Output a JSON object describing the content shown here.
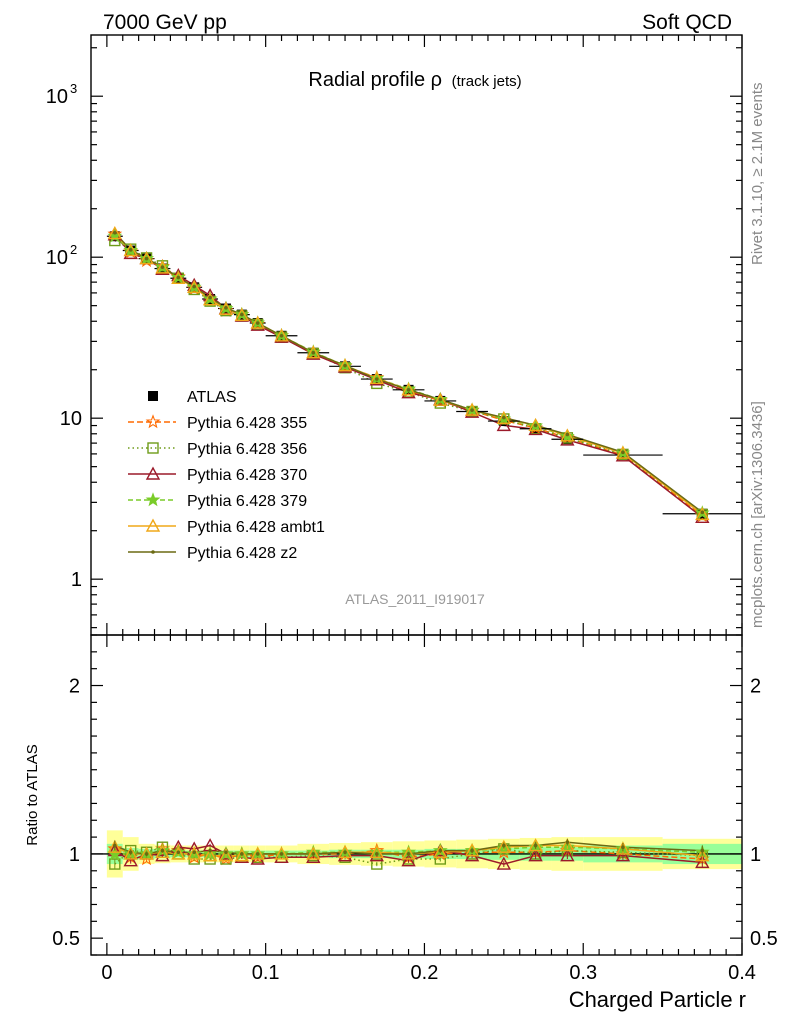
{
  "header": {
    "left": "7000 GeV pp",
    "right": "Soft QCD"
  },
  "side_labels": {
    "top": "Rivet 3.1.10, ≥ 2.1M events",
    "bottom": "mcplots.cern.ch [arXiv:1306.3436]"
  },
  "chart_data": [
    {
      "type": "line",
      "title_main": "Radial profile ρ",
      "title_sub": "(track jets)",
      "watermark": "ATLAS_2011_I919017",
      "yscale": "log",
      "xlim": [
        -0.01,
        0.4
      ],
      "ylim": [
        0.45,
        2400
      ],
      "y_ticks": [
        {
          "value": 1,
          "label": "1"
        },
        {
          "value": 10,
          "label": "10"
        },
        {
          "value": 100,
          "label": "10",
          "exp": "2"
        },
        {
          "value": 1000,
          "label": "10",
          "exp": "3"
        }
      ],
      "x": [
        0.005,
        0.015,
        0.025,
        0.035,
        0.045,
        0.055,
        0.065,
        0.075,
        0.085,
        0.095,
        0.11,
        0.13,
        0.15,
        0.17,
        0.19,
        0.21,
        0.23,
        0.25,
        0.27,
        0.29,
        0.325,
        0.375
      ],
      "x_half_widths": [
        0.005,
        0.005,
        0.005,
        0.005,
        0.005,
        0.005,
        0.005,
        0.005,
        0.005,
        0.005,
        0.01,
        0.01,
        0.01,
        0.01,
        0.01,
        0.01,
        0.01,
        0.01,
        0.01,
        0.01,
        0.025,
        0.025
      ],
      "data": {
        "name": "ATLAS",
        "values": [
          135,
          110,
          98,
          85,
          74,
          65,
          55,
          48,
          44,
          39,
          32.5,
          25.5,
          21,
          17.5,
          15,
          12.8,
          11,
          9.6,
          8.6,
          7.4,
          5.9,
          2.55
        ]
      },
      "series": [
        {
          "name": "Pythia 6.428 355",
          "color": "#ff6a00",
          "dash": "6,3",
          "marker": "star-open",
          "ratio": [
            1.03,
            0.98,
            0.97,
            1.03,
            1.02,
            0.98,
            1.0,
            0.97,
            1.0,
            0.98,
            1.0,
            1.0,
            1.0,
            1.02,
            0.98,
            1.0,
            1.01,
            1.01,
            1.01,
            1.02,
            1.0,
            0.97
          ]
        },
        {
          "name": "Pythia 6.428 356",
          "color": "#6f9c1a",
          "dash": "1.5,3",
          "marker": "square-open",
          "ratio": [
            0.94,
            1.02,
            1.01,
            1.04,
            1.0,
            0.97,
            0.97,
            0.97,
            0.98,
            0.98,
            0.98,
            0.99,
            0.98,
            0.94,
            0.97,
            0.97,
            1.0,
            1.03,
            1.0,
            1.02,
            1.01,
            0.99
          ]
        },
        {
          "name": "Pythia 6.428 370",
          "color": "#9b1a2a",
          "dash": "",
          "marker": "triangle-open",
          "ratio": [
            1.02,
            0.96,
            1.0,
            0.99,
            1.04,
            1.03,
            1.05,
            1.0,
            0.98,
            0.97,
            0.98,
            0.98,
            0.99,
            0.99,
            0.96,
            1.02,
            0.99,
            0.94,
            0.99,
            0.99,
            0.99,
            0.95
          ]
        },
        {
          "name": "Pythia 6.428 379",
          "color": "#7acc29",
          "dash": "5,3",
          "marker": "star-filled",
          "ratio": [
            1.0,
            1.0,
            1.0,
            1.02,
            1.01,
            1.0,
            1.0,
            1.0,
            1.0,
            1.0,
            1.0,
            1.01,
            1.01,
            1.01,
            1.01,
            1.02,
            1.02,
            1.03,
            1.04,
            1.04,
            1.03,
            1.01
          ]
        },
        {
          "name": "Pythia 6.428 ambt1",
          "color": "#f0a818",
          "dash": "",
          "marker": "triangle-open",
          "ratio": [
            1.04,
            1.0,
            1.0,
            1.01,
            1.0,
            1.0,
            0.99,
            0.99,
            0.99,
            1.0,
            1.0,
            1.0,
            1.01,
            1.01,
            1.0,
            1.01,
            1.02,
            1.04,
            1.05,
            1.05,
            1.03,
            0.99
          ]
        },
        {
          "name": "Pythia 6.428 z2",
          "color": "#6b6a13",
          "dash": "",
          "marker": "dot",
          "ratio": [
            1.05,
            1.01,
            1.0,
            1.02,
            1.01,
            1.01,
            1.02,
            1.01,
            1.0,
            1.0,
            1.0,
            1.0,
            1.01,
            1.0,
            1.0,
            1.02,
            1.02,
            1.05,
            1.05,
            1.07,
            1.04,
            1.02
          ]
        }
      ]
    },
    {
      "type": "line",
      "ylabel": "Ratio to ATLAS",
      "xlabel": "Charged Particle r",
      "xlim": [
        -0.01,
        0.4
      ],
      "ylim": [
        0.4,
        2.3
      ],
      "x_ticks": [
        {
          "value": 0,
          "label": "0"
        },
        {
          "value": 0.1,
          "label": "0.1"
        },
        {
          "value": 0.2,
          "label": "0.2"
        },
        {
          "value": 0.3,
          "label": "0.3"
        },
        {
          "value": 0.4,
          "label": "0.4"
        }
      ],
      "y_ticks": [
        {
          "value": 0.5,
          "label": "0.5"
        },
        {
          "value": 1,
          "label": "1"
        },
        {
          "value": 2,
          "label": "2"
        }
      ],
      "bands": {
        "outer_color": "#ffff99",
        "inner_color": "#99ff99",
        "stat": [
          0.06,
          0.035,
          0.03,
          0.025,
          0.02,
          0.02,
          0.02,
          0.02,
          0.02,
          0.02,
          0.02,
          0.02,
          0.025,
          0.025,
          0.025,
          0.03,
          0.03,
          0.035,
          0.04,
          0.04,
          0.05,
          0.06
        ],
        "total": [
          0.14,
          0.1,
          0.06,
          0.055,
          0.05,
          0.05,
          0.05,
          0.05,
          0.05,
          0.05,
          0.05,
          0.06,
          0.065,
          0.07,
          0.075,
          0.08,
          0.085,
          0.09,
          0.095,
          0.1,
          0.1,
          0.09
        ]
      }
    }
  ]
}
